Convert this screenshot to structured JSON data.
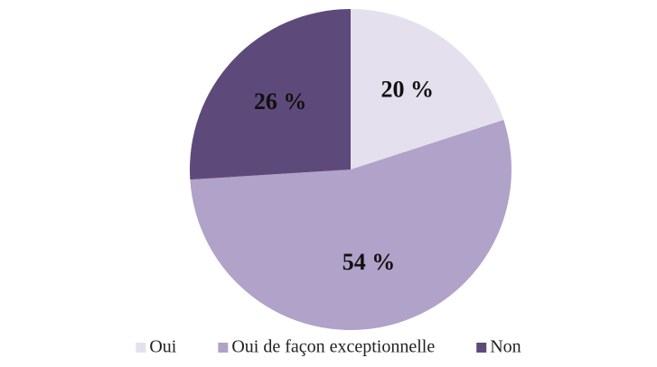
{
  "chart_data": {
    "type": "pie",
    "categories": [
      "Oui",
      "Oui de façon exceptionnelle",
      "Non"
    ],
    "values": [
      20,
      54,
      26
    ],
    "value_labels": [
      "20 %",
      "54 %",
      "26 %"
    ],
    "colors": [
      "#e5e0ee",
      "#b0a2c8",
      "#5e4a7a"
    ],
    "legend": "bottom"
  }
}
